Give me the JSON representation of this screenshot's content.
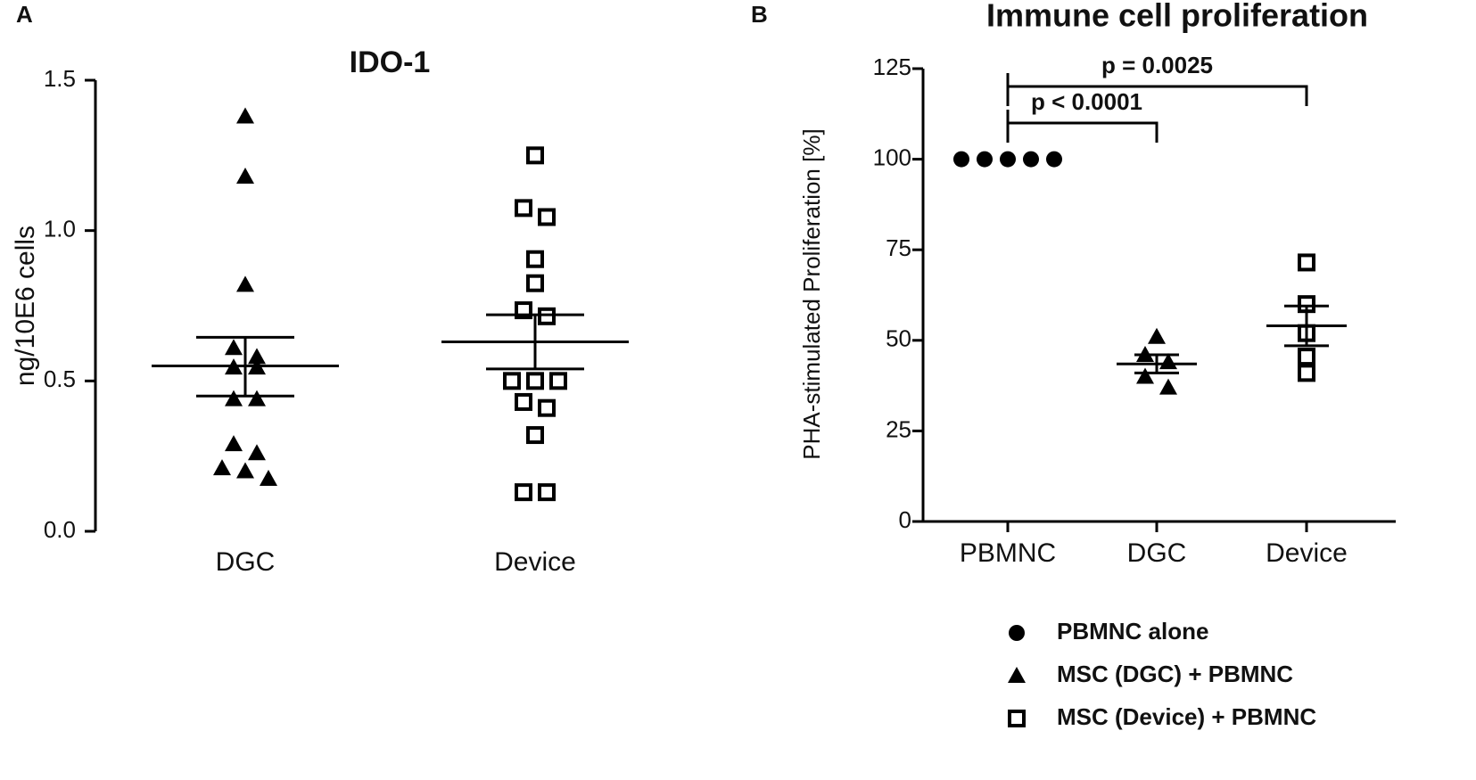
{
  "chart_data": [
    {
      "type": "dotplot",
      "panel": "A",
      "title": "IDO-1",
      "y_label": "ng/10E6 cells",
      "categories": [
        "DGC",
        "Device"
      ],
      "markers": [
        "triangle",
        "square"
      ],
      "values": [
        [
          1.38,
          1.18,
          0.82,
          0.61,
          0.58,
          0.545,
          0.545,
          0.44,
          0.44,
          0.29,
          0.26,
          0.21,
          0.2,
          0.175
        ],
        [
          1.25,
          1.075,
          1.045,
          0.905,
          0.825,
          0.735,
          0.715,
          0.5,
          0.5,
          0.5,
          0.43,
          0.41,
          0.32,
          0.13,
          0.13
        ]
      ],
      "mean": [
        0.55,
        0.63
      ],
      "sem_low": [
        0.45,
        0.54
      ],
      "sem_high": [
        0.645,
        0.72
      ],
      "ylim": [
        0,
        1.5
      ],
      "yticks": [
        {
          "value": 0,
          "label": "0.0"
        },
        0.5,
        {
          "value": 1,
          "label": "1.0"
        },
        1.5
      ],
      "color": "#000000"
    },
    {
      "type": "dotplot",
      "panel": "B",
      "title": "Immune cell proliferation",
      "y_label": "PHA-stimulated Proliferation [%]",
      "categories": [
        "PBMNC",
        "DGC",
        "Device"
      ],
      "markers": [
        "circle",
        "triangle",
        "square"
      ],
      "values": [
        [
          100,
          100,
          100,
          100,
          100
        ],
        [
          51,
          46,
          44,
          40,
          37
        ],
        [
          71.5,
          60,
          52,
          45.5,
          41
        ]
      ],
      "mean": [
        null,
        43.5,
        54
      ],
      "sem_low": [
        null,
        41,
        48.5
      ],
      "sem_high": [
        null,
        46,
        59.5
      ],
      "legend": [
        "PBMNC alone",
        "MSC (DGC) + PBMNC",
        "MSC (Device) + PBMNC"
      ],
      "annotations": [
        {
          "text": "p = 0.0025",
          "from": 0,
          "to": 2
        },
        {
          "text": "p < 0.0001",
          "from": 0,
          "to": 1
        }
      ],
      "ylim": [
        0,
        125
      ],
      "yticks": [
        0,
        25,
        50,
        75,
        100,
        125
      ],
      "color": "#000000"
    }
  ]
}
